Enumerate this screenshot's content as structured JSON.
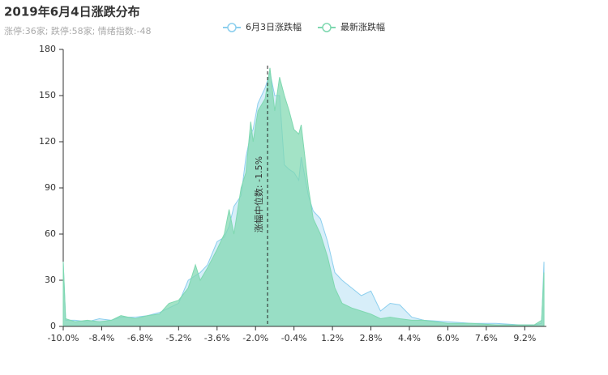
{
  "chart_data": {
    "type": "area",
    "title": "2019年6月4日涨跌分布",
    "subtitle": "涨停:36家; 跌停:58家; 情绪指数:-48",
    "x": [
      -10,
      -9.9,
      -9.5,
      -9,
      -8.5,
      -8,
      -7.6,
      -7,
      -6.5,
      -6,
      -5.6,
      -5.2,
      -4.8,
      -4.5,
      -4.3,
      -4,
      -3.6,
      -3.3,
      -3.1,
      -2.9,
      -2.6,
      -2.4,
      -2.2,
      -2.1,
      -1.9,
      -1.6,
      -1.4,
      -1.2,
      -1,
      -0.8,
      -0.6,
      -0.4,
      -0.2,
      -0.1,
      0.2,
      0.4,
      0.7,
      1,
      1.3,
      1.6,
      2,
      2.4,
      2.8,
      3.2,
      3.6,
      4,
      4.5,
      5,
      6,
      7,
      8,
      9,
      9.6,
      9.9,
      10
    ],
    "series": [
      {
        "name": "6月3日涨跌幅",
        "color": "#8ccfee",
        "values": [
          42,
          4,
          4,
          3,
          5,
          4,
          6,
          6,
          7,
          9,
          12,
          15,
          30,
          33,
          35,
          40,
          55,
          58,
          65,
          78,
          85,
          110,
          125,
          128,
          145,
          155,
          165,
          150,
          150,
          105,
          102,
          100,
          95,
          110,
          85,
          75,
          70,
          55,
          35,
          30,
          25,
          20,
          23,
          10,
          15,
          14,
          6,
          4,
          3,
          2,
          2,
          1,
          1,
          2,
          42
        ]
      },
      {
        "name": "最新涨跌幅",
        "color": "#7fd8b0",
        "values": [
          42,
          5,
          3,
          4,
          3,
          4,
          7,
          5,
          7,
          8,
          15,
          17,
          25,
          40,
          30,
          38,
          50,
          60,
          76,
          60,
          90,
          100,
          133,
          120,
          140,
          148,
          168,
          140,
          162,
          150,
          140,
          128,
          125,
          131,
          90,
          70,
          60,
          45,
          25,
          15,
          12,
          10,
          8,
          5,
          6,
          5,
          4,
          4,
          2,
          2,
          1,
          1,
          1,
          4,
          35
        ]
      }
    ],
    "xlim": [
      -10,
      10.1
    ],
    "xticks": [
      {
        "value": -10,
        "label": "-10.0%"
      },
      {
        "value": -8.4,
        "label": "-8.4%"
      },
      {
        "value": -6.8,
        "label": "-6.8%"
      },
      {
        "value": -5.2,
        "label": "-5.2%"
      },
      {
        "value": -3.6,
        "label": "-3.6%"
      },
      {
        "value": -2,
        "label": "-2.0%"
      },
      {
        "value": -0.4,
        "label": "-0.4%"
      },
      {
        "value": 1.2,
        "label": "1.2%"
      },
      {
        "value": 2.8,
        "label": "2.8%"
      },
      {
        "value": 4.4,
        "label": "4.4%"
      },
      {
        "value": 6,
        "label": "6.0%"
      },
      {
        "value": 7.6,
        "label": "7.6%"
      },
      {
        "value": 9.2,
        "label": "9.2%"
      }
    ],
    "ylim": [
      0,
      180
    ],
    "yticks": [
      0,
      30,
      60,
      90,
      120,
      150,
      180
    ],
    "annotation": {
      "value": -1.5,
      "label": "涨幅中位数: -1.5%"
    }
  }
}
